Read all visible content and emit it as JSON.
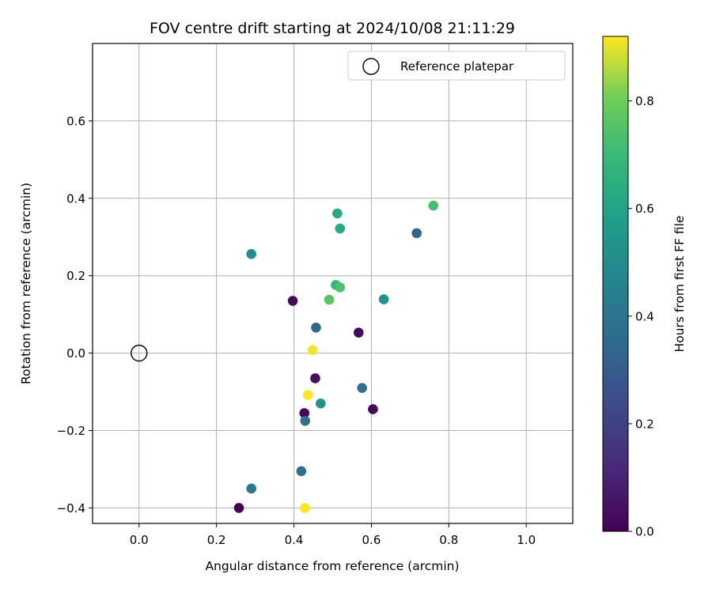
{
  "chart_data": {
    "type": "scatter",
    "title": "FOV centre drift starting at 2024/10/08 21:11:29",
    "xlabel": "Angular distance from reference (arcmin)",
    "ylabel": "Rotation from reference (arcmin)",
    "xlim": [
      -0.12,
      1.12
    ],
    "ylim": [
      -0.44,
      0.8
    ],
    "xticks": [
      0.0,
      0.2,
      0.4,
      0.6,
      0.8,
      1.0
    ],
    "xtick_labels": [
      "0.0",
      "0.2",
      "0.4",
      "0.6",
      "0.8",
      "1.0"
    ],
    "yticks": [
      -0.4,
      -0.2,
      0.0,
      0.2,
      0.4,
      0.6
    ],
    "ytick_labels": [
      "−0.4",
      "−0.2",
      "0.0",
      "0.2",
      "0.4",
      "0.6"
    ],
    "grid": true,
    "legend": {
      "label": "Reference platepar",
      "placement": "top-right"
    },
    "reference_point": {
      "x": 0.0,
      "y": 0.0
    },
    "colorbar": {
      "label": "Hours from first FF file",
      "colormap": "viridis",
      "range": [
        0.0,
        0.92
      ],
      "ticks": [
        0.0,
        0.2,
        0.4,
        0.6,
        0.8
      ],
      "tick_labels": [
        "0.0",
        "0.2",
        "0.4",
        "0.6",
        "0.8"
      ]
    },
    "series": [
      {
        "name": "FOV centre drift",
        "points": [
          {
            "x": 0.258,
            "y": -0.4,
            "hours": 0.0
          },
          {
            "x": 0.397,
            "y": 0.135,
            "hours": 0.02
          },
          {
            "x": 0.427,
            "y": -0.155,
            "hours": 0.02
          },
          {
            "x": 0.455,
            "y": -0.065,
            "hours": 0.04
          },
          {
            "x": 0.567,
            "y": 0.053,
            "hours": 0.03
          },
          {
            "x": 0.604,
            "y": -0.145,
            "hours": 0.02
          },
          {
            "x": 0.457,
            "y": 0.066,
            "hours": 0.34
          },
          {
            "x": 0.429,
            "y": -0.175,
            "hours": 0.38
          },
          {
            "x": 0.419,
            "y": -0.305,
            "hours": 0.37
          },
          {
            "x": 0.29,
            "y": -0.35,
            "hours": 0.41
          },
          {
            "x": 0.576,
            "y": -0.09,
            "hours": 0.39
          },
          {
            "x": 0.717,
            "y": 0.31,
            "hours": 0.33
          },
          {
            "x": 0.29,
            "y": 0.256,
            "hours": 0.5
          },
          {
            "x": 0.469,
            "y": -0.13,
            "hours": 0.52
          },
          {
            "x": 0.632,
            "y": 0.139,
            "hours": 0.52
          },
          {
            "x": 0.512,
            "y": 0.361,
            "hours": 0.63
          },
          {
            "x": 0.519,
            "y": 0.322,
            "hours": 0.64
          },
          {
            "x": 0.508,
            "y": 0.176,
            "hours": 0.69
          },
          {
            "x": 0.519,
            "y": 0.17,
            "hours": 0.74
          },
          {
            "x": 0.491,
            "y": 0.138,
            "hours": 0.76
          },
          {
            "x": 0.76,
            "y": 0.381,
            "hours": 0.73
          },
          {
            "x": 0.448,
            "y": 0.008,
            "hours": 0.91
          },
          {
            "x": 0.436,
            "y": -0.108,
            "hours": 0.92
          },
          {
            "x": 0.428,
            "y": -0.4,
            "hours": 0.92
          }
        ]
      }
    ]
  }
}
